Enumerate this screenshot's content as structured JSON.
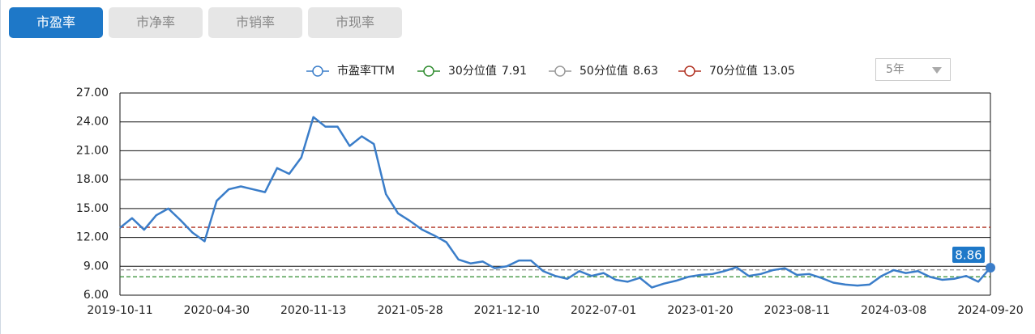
{
  "tabs": {
    "items": [
      "市盈率",
      "市净率",
      "市销率",
      "市现率"
    ],
    "active": 0
  },
  "dropdown": {
    "value": "5年"
  },
  "chart_data": {
    "type": "line",
    "x": [
      "2019-10-11",
      null,
      null,
      null,
      null,
      null,
      null,
      null,
      "2020-04-30",
      null,
      null,
      null,
      null,
      null,
      null,
      null,
      "2020-11-13",
      null,
      null,
      null,
      null,
      null,
      null,
      null,
      "2021-05-28",
      null,
      null,
      null,
      null,
      null,
      null,
      null,
      "2021-12-10",
      null,
      null,
      null,
      null,
      null,
      null,
      null,
      "2022-07-01",
      null,
      null,
      null,
      null,
      null,
      null,
      null,
      "2023-01-20",
      null,
      null,
      null,
      null,
      null,
      null,
      null,
      "2023-08-11",
      null,
      null,
      null,
      null,
      null,
      null,
      null,
      "2024-03-08",
      null,
      null,
      null,
      null,
      null,
      null,
      null,
      "2024-09-20"
    ],
    "series": [
      {
        "name": "市盈率TTM",
        "color": "#3a7dc9",
        "values": [
          13.0,
          14.0,
          12.8,
          14.3,
          15.0,
          13.8,
          12.5,
          11.6,
          15.8,
          17.0,
          17.3,
          17.0,
          16.7,
          19.2,
          18.6,
          20.3,
          24.5,
          23.5,
          23.5,
          21.5,
          22.5,
          21.7,
          16.5,
          14.5,
          13.7,
          12.8,
          12.2,
          11.5,
          9.7,
          9.3,
          9.5,
          8.8,
          9.0,
          9.6,
          9.6,
          8.5,
          8.0,
          7.7,
          8.5,
          8.0,
          8.3,
          7.6,
          7.4,
          7.8,
          6.8,
          7.2,
          7.5,
          7.9,
          8.1,
          8.2,
          8.5,
          8.9,
          8.0,
          8.2,
          8.6,
          8.8,
          8.1,
          8.2,
          7.8,
          7.3,
          7.1,
          7.0,
          7.1,
          8.0,
          8.6,
          8.3,
          8.5,
          7.9,
          7.6,
          7.7,
          8.0,
          7.4,
          8.86
        ],
        "label_last": true
      }
    ],
    "reference_lines": [
      {
        "name": "30分位值",
        "value": 7.91,
        "color": "#2e8b2e"
      },
      {
        "name": "50分位值",
        "value": 8.63,
        "color": "#999999"
      },
      {
        "name": "70分位值",
        "value": 13.05,
        "color": "#b03020"
      }
    ],
    "ylim": [
      6,
      27
    ],
    "yticks": [
      {
        "value": 6,
        "label": "6.00"
      },
      {
        "value": 9,
        "label": "9.00"
      },
      {
        "value": 12,
        "label": "12.00"
      },
      {
        "value": 15,
        "label": "15.00"
      },
      {
        "value": 18,
        "label": "18.00"
      },
      {
        "value": 21,
        "label": "21.00"
      },
      {
        "value": 24,
        "label": "24.00"
      },
      {
        "value": 27,
        "label": "27.00"
      }
    ],
    "grid": true
  }
}
